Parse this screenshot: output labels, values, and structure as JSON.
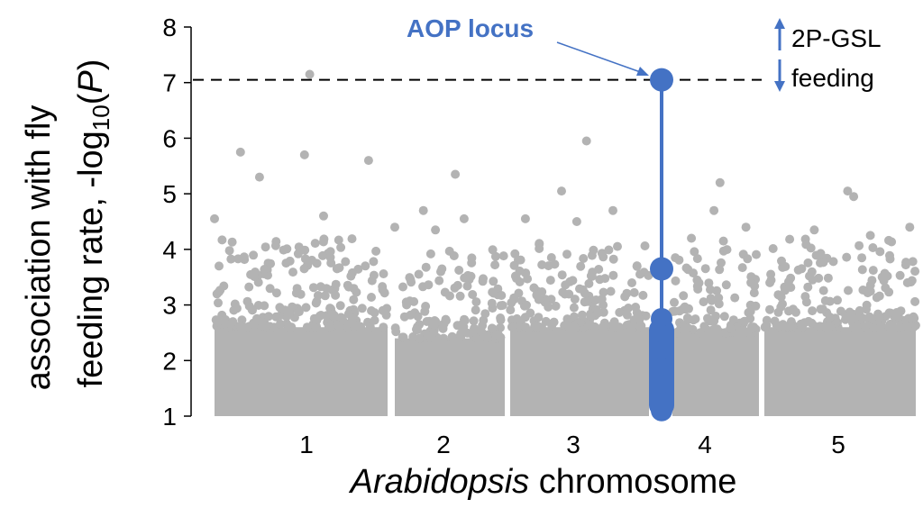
{
  "chart_data": {
    "type": "scatter",
    "title": "",
    "xlabel_italic": "Arabidopsis",
    "xlabel_rest": " chromosome",
    "ylabel_line1": "association with fly",
    "ylabel_line2_prefix": "feeding rate, -log",
    "ylabel_subscript": "10",
    "ylabel_open": "(",
    "ylabel_p": "P",
    "ylabel_close": ")",
    "ylim": [
      1,
      8
    ],
    "yticks": [
      "1",
      "2",
      "3",
      "4",
      "5",
      "6",
      "7",
      "8"
    ],
    "grid": false,
    "significance_threshold": 7.05,
    "chromosomes": [
      {
        "label": "1",
        "bulk_top": 2.6,
        "max": 7.15,
        "notable_peaks": [
          5.75,
          5.7,
          5.6,
          5.3,
          4.6,
          4.55
        ]
      },
      {
        "label": "2",
        "bulk_top": 2.4,
        "max": 5.35,
        "notable_peaks": [
          4.7,
          4.55,
          4.4,
          4.35
        ]
      },
      {
        "label": "3",
        "bulk_top": 2.6,
        "max": 5.95,
        "notable_peaks": [
          5.05,
          4.7,
          4.55,
          4.5
        ]
      },
      {
        "label": "4",
        "bulk_top": 2.5,
        "max": 5.2,
        "notable_peaks": [
          4.7,
          4.4,
          4.2,
          4.15
        ]
      },
      {
        "label": "5",
        "bulk_top": 2.6,
        "max": 5.05,
        "notable_peaks": [
          4.95,
          4.4,
          4.35,
          4.25
        ]
      }
    ],
    "highlight": {
      "name": "AOP locus",
      "chromosome": "4",
      "points": [
        7.05,
        3.65,
        2.75,
        2.6,
        2.45,
        2.3,
        2.15,
        2.0,
        1.85,
        1.7,
        1.55,
        1.4,
        1.25,
        1.1
      ],
      "color": "#4472c4"
    },
    "background_color": "#b3b3b3"
  },
  "legend": {
    "up_label": "2P-GSL",
    "down_label": "feeding",
    "arrow_color": "#4472c4"
  }
}
